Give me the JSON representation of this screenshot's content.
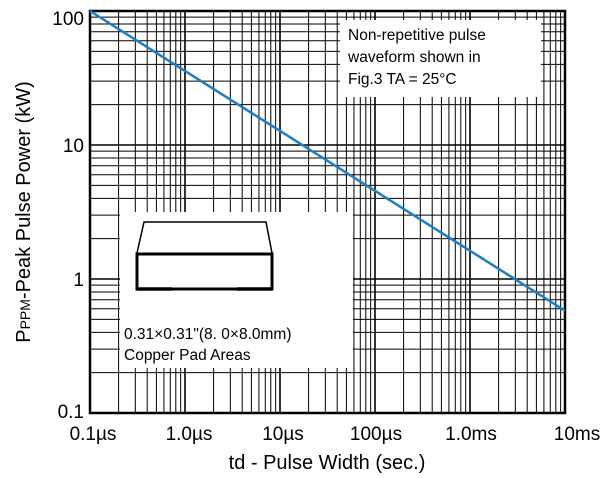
{
  "chart_data": {
    "type": "line",
    "x_scale": "log",
    "y_scale": "log",
    "xlim": [
      "0.1µs",
      "10ms"
    ],
    "ylim": [
      0.1,
      100
    ],
    "xlabel": "td - Pulse Width (sec.)",
    "ylabel_main": "P",
    "ylabel_sub": "PPM",
    "ylabel_rest": "-Peak Pulse Power (kW)",
    "x_tick_labels": [
      "0.1µs",
      "1.0µs",
      "10µs",
      "100µs",
      "1.0ms",
      "10ms"
    ],
    "y_tick_labels": [
      "0.1",
      "1",
      "10",
      "100"
    ],
    "grid": true,
    "series": [
      {
        "x": [
          "0.1µs",
          "10ms"
        ],
        "x_seconds": [
          1e-07,
          0.01
        ],
        "y": [
          115,
          0.58
        ],
        "color": "#1f7fc4"
      }
    ],
    "annotations": {
      "note_lines": [
        "Non-repetitive pulse",
        "waveform shown in",
        "Fig.3 TA = 25°C"
      ],
      "pad_lines": [
        "0.31×0.31\"(8. 0×8.0mm)",
        "Copper Pad Areas"
      ]
    }
  }
}
